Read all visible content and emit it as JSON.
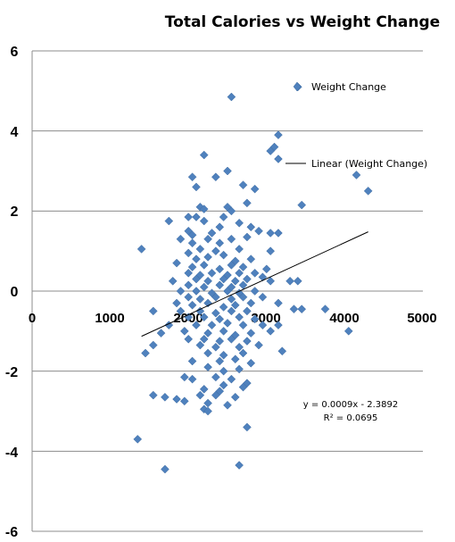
{
  "chart_data": {
    "type": "scatter",
    "title": "Total Calories vs Weight Change",
    "xlabel": "",
    "ylabel": "",
    "xlim": [
      0,
      5000
    ],
    "ylim": [
      -6,
      6
    ],
    "x_ticks": [
      "0",
      "1000",
      "2000",
      "3000",
      "4000",
      "5000"
    ],
    "y_ticks": [
      "6",
      "4",
      "2",
      "0",
      "-2",
      "-4",
      "-6"
    ],
    "grid": "horizontal major gridlines",
    "legend": {
      "placement": "top-right",
      "entries": [
        {
          "label": "Weight Change",
          "marker": "diamond"
        },
        {
          "label": "Linear (Weight Change)",
          "marker": "line"
        }
      ]
    },
    "trendline": {
      "type": "linear",
      "slope": 0.0009,
      "intercept": -2.3892,
      "x_range": [
        1400,
        4300
      ],
      "equation_text": "y = 0.0009x - 2.3892",
      "r2_text": "R² = 0.0695"
    },
    "colors": {
      "marker": "#4f81bd",
      "trendline": "#000000",
      "grid": "#8c8c8c"
    },
    "series": [
      {
        "name": "Weight Change",
        "points": [
          [
            2550,
            4.85
          ],
          [
            3400,
            5.1
          ],
          [
            3150,
            3.9
          ],
          [
            3100,
            3.6
          ],
          [
            3050,
            3.5
          ],
          [
            3150,
            3.3
          ],
          [
            4150,
            2.9
          ],
          [
            4300,
            2.5
          ],
          [
            2200,
            3.4
          ],
          [
            2500,
            3.0
          ],
          [
            2350,
            2.85
          ],
          [
            2050,
            2.85
          ],
          [
            2850,
            2.55
          ],
          [
            2100,
            2.6
          ],
          [
            2700,
            2.65
          ],
          [
            3450,
            2.15
          ],
          [
            2150,
            2.1
          ],
          [
            2200,
            2.05
          ],
          [
            2500,
            2.1
          ],
          [
            2750,
            2.2
          ],
          [
            2550,
            2.0
          ],
          [
            1750,
            1.75
          ],
          [
            2000,
            1.85
          ],
          [
            2100,
            1.85
          ],
          [
            2200,
            1.75
          ],
          [
            2450,
            1.85
          ],
          [
            2650,
            1.7
          ],
          [
            2400,
            1.6
          ],
          [
            2000,
            1.5
          ],
          [
            2050,
            1.4
          ],
          [
            2300,
            1.45
          ],
          [
            2800,
            1.6
          ],
          [
            2900,
            1.5
          ],
          [
            3050,
            1.45
          ],
          [
            3150,
            1.45
          ],
          [
            1900,
            1.3
          ],
          [
            2050,
            1.2
          ],
          [
            2250,
            1.3
          ],
          [
            2400,
            1.2
          ],
          [
            2550,
            1.3
          ],
          [
            2750,
            1.35
          ],
          [
            1400,
            1.05
          ],
          [
            2150,
            1.05
          ],
          [
            2350,
            1.0
          ],
          [
            2650,
            1.05
          ],
          [
            3050,
            1.0
          ],
          [
            2000,
            0.95
          ],
          [
            2100,
            0.8
          ],
          [
            2250,
            0.85
          ],
          [
            2450,
            0.9
          ],
          [
            2600,
            0.75
          ],
          [
            2800,
            0.8
          ],
          [
            1850,
            0.7
          ],
          [
            2050,
            0.6
          ],
          [
            2200,
            0.65
          ],
          [
            2400,
            0.55
          ],
          [
            2550,
            0.65
          ],
          [
            2700,
            0.6
          ],
          [
            3000,
            0.55
          ],
          [
            2000,
            0.45
          ],
          [
            2150,
            0.4
          ],
          [
            2300,
            0.45
          ],
          [
            2500,
            0.4
          ],
          [
            2650,
            0.45
          ],
          [
            2850,
            0.45
          ],
          [
            2950,
            0.35
          ],
          [
            1800,
            0.25
          ],
          [
            2100,
            0.3
          ],
          [
            2250,
            0.25
          ],
          [
            2450,
            0.3
          ],
          [
            2600,
            0.25
          ],
          [
            2750,
            0.3
          ],
          [
            3050,
            0.25
          ],
          [
            3300,
            0.25
          ],
          [
            3400,
            0.25
          ],
          [
            2000,
            0.15
          ],
          [
            2200,
            0.1
          ],
          [
            2400,
            0.15
          ],
          [
            2550,
            0.1
          ],
          [
            2700,
            0.15
          ],
          [
            1900,
            0.0
          ],
          [
            2100,
            0.0
          ],
          [
            2300,
            -0.05
          ],
          [
            2500,
            0.0
          ],
          [
            2650,
            -0.05
          ],
          [
            2850,
            0.0
          ],
          [
            2000,
            -0.15
          ],
          [
            2150,
            -0.2
          ],
          [
            2350,
            -0.15
          ],
          [
            2550,
            -0.2
          ],
          [
            2700,
            -0.15
          ],
          [
            2950,
            -0.15
          ],
          [
            1850,
            -0.3
          ],
          [
            2050,
            -0.35
          ],
          [
            2250,
            -0.3
          ],
          [
            2450,
            -0.4
          ],
          [
            2600,
            -0.35
          ],
          [
            2800,
            -0.3
          ],
          [
            3150,
            -0.3
          ],
          [
            1550,
            -0.5
          ],
          [
            1900,
            -0.5
          ],
          [
            2150,
            -0.5
          ],
          [
            2350,
            -0.55
          ],
          [
            2550,
            -0.5
          ],
          [
            2750,
            -0.5
          ],
          [
            3350,
            -0.45
          ],
          [
            3450,
            -0.45
          ],
          [
            3750,
            -0.45
          ],
          [
            2000,
            -0.65
          ],
          [
            2200,
            -0.65
          ],
          [
            2400,
            -0.7
          ],
          [
            2650,
            -0.65
          ],
          [
            2850,
            -0.7
          ],
          [
            1750,
            -0.85
          ],
          [
            2100,
            -0.85
          ],
          [
            2300,
            -0.85
          ],
          [
            2500,
            -0.8
          ],
          [
            2700,
            -0.85
          ],
          [
            2950,
            -0.85
          ],
          [
            3150,
            -0.85
          ],
          [
            1650,
            -1.05
          ],
          [
            1950,
            -1.0
          ],
          [
            2250,
            -1.05
          ],
          [
            2450,
            -1.0
          ],
          [
            2600,
            -1.1
          ],
          [
            2800,
            -1.05
          ],
          [
            3050,
            -1.0
          ],
          [
            4050,
            -1.0
          ],
          [
            2000,
            -1.2
          ],
          [
            2200,
            -1.2
          ],
          [
            2400,
            -1.25
          ],
          [
            2550,
            -1.2
          ],
          [
            2750,
            -1.25
          ],
          [
            1550,
            -1.35
          ],
          [
            2150,
            -1.35
          ],
          [
            2350,
            -1.4
          ],
          [
            2650,
            -1.4
          ],
          [
            2900,
            -1.35
          ],
          [
            1450,
            -1.55
          ],
          [
            2250,
            -1.55
          ],
          [
            2450,
            -1.6
          ],
          [
            2700,
            -1.55
          ],
          [
            3200,
            -1.5
          ],
          [
            2050,
            -1.75
          ],
          [
            2400,
            -1.75
          ],
          [
            2600,
            -1.7
          ],
          [
            2800,
            -1.8
          ],
          [
            2250,
            -1.9
          ],
          [
            2450,
            -2.0
          ],
          [
            2650,
            -1.95
          ],
          [
            1950,
            -2.15
          ],
          [
            2050,
            -2.2
          ],
          [
            2350,
            -2.15
          ],
          [
            2550,
            -2.2
          ],
          [
            2450,
            -2.35
          ],
          [
            2750,
            -2.3
          ],
          [
            2200,
            -2.45
          ],
          [
            2400,
            -2.5
          ],
          [
            2700,
            -2.4
          ],
          [
            1700,
            -2.65
          ],
          [
            1850,
            -2.7
          ],
          [
            2150,
            -2.6
          ],
          [
            2350,
            -2.6
          ],
          [
            2600,
            -2.65
          ],
          [
            1950,
            -2.75
          ],
          [
            2250,
            -2.8
          ],
          [
            2500,
            -2.85
          ],
          [
            2200,
            -2.95
          ],
          [
            2250,
            -3.0
          ],
          [
            2750,
            -3.4
          ],
          [
            1350,
            -3.7
          ],
          [
            1700,
            -4.45
          ],
          [
            2650,
            -4.35
          ],
          [
            1550,
            -2.6
          ]
        ]
      }
    ]
  }
}
